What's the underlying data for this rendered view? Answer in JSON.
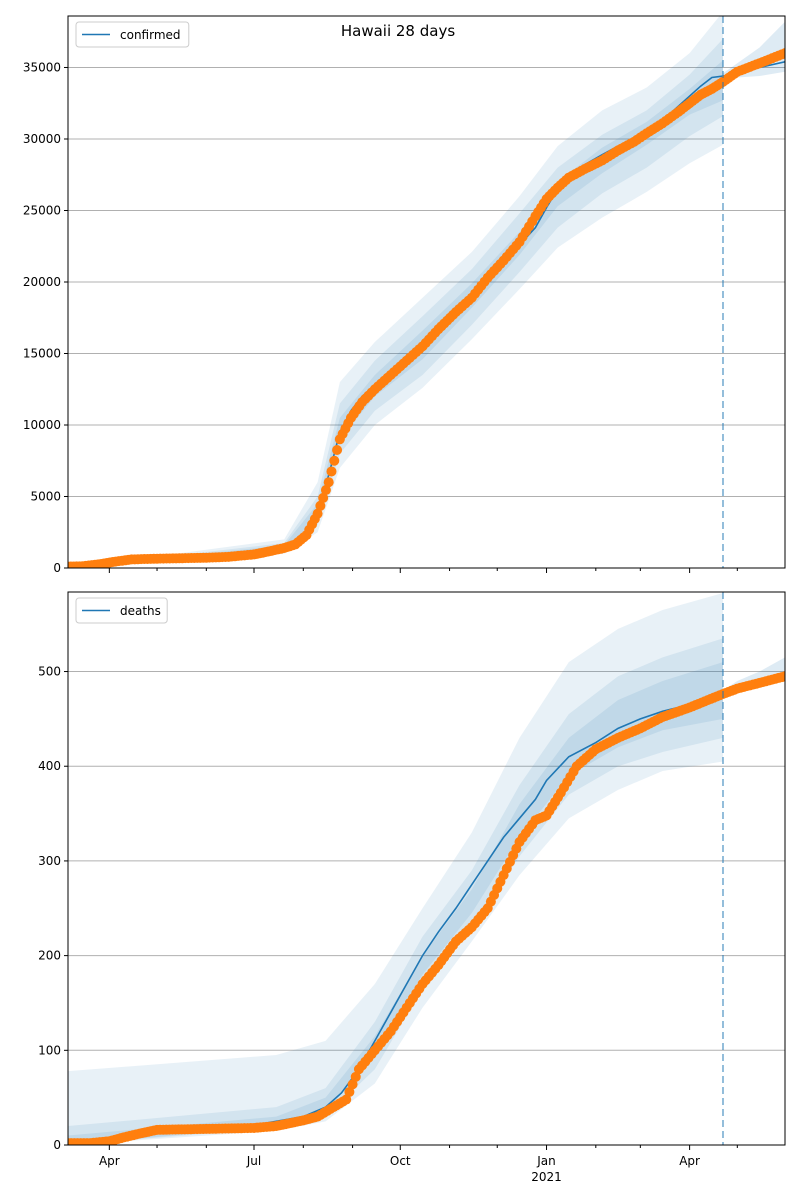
{
  "figure": {
    "title": "Hawaii 28 days"
  },
  "style": {
    "line_color": "#1f77b4",
    "point_color": "#ff7f0e",
    "band_color": "#1f77b4",
    "grid_color": "#b0b0b0",
    "vline_color": "#1f77b4"
  },
  "chart_data": [
    {
      "type": "line",
      "panel": "top",
      "series": [
        {
          "name": "confirmed",
          "kind": "line",
          "x": [
            "2020-03-06",
            "2020-03-15",
            "2020-03-25",
            "2020-04-05",
            "2020-04-15",
            "2020-05-01",
            "2020-05-15",
            "2020-06-01",
            "2020-06-15",
            "2020-07-01",
            "2020-07-10",
            "2020-07-20",
            "2020-07-27",
            "2020-08-03",
            "2020-08-10",
            "2020-08-17",
            "2020-08-24",
            "2020-08-31",
            "2020-09-07",
            "2020-09-15",
            "2020-09-25",
            "2020-10-05",
            "2020-10-15",
            "2020-10-25",
            "2020-11-05",
            "2020-11-15",
            "2020-11-25",
            "2020-12-05",
            "2020-12-15",
            "2020-12-25",
            "2021-01-01",
            "2021-01-08",
            "2021-01-15",
            "2021-01-25",
            "2021-02-05",
            "2021-02-15",
            "2021-02-25",
            "2021-03-05",
            "2021-03-15",
            "2021-03-25",
            "2021-04-01",
            "2021-04-08",
            "2021-04-15",
            "2021-04-22",
            "2021-05-01",
            "2021-05-15",
            "2021-05-31"
          ],
          "y": [
            100,
            150,
            300,
            500,
            600,
            650,
            680,
            720,
            780,
            950,
            1150,
            1400,
            1700,
            2500,
            4000,
            6500,
            9500,
            11000,
            12000,
            12800,
            13700,
            14700,
            15700,
            16800,
            18000,
            19200,
            20300,
            21500,
            22600,
            23800,
            25200,
            26500,
            27400,
            28200,
            28900,
            29500,
            30100,
            30700,
            31300,
            32300,
            33000,
            33700,
            34300,
            34400,
            34600,
            35000,
            35400
          ]
        },
        {
          "name": "",
          "kind": "points",
          "x": [
            "2020-03-06",
            "2020-03-15",
            "2020-03-25",
            "2020-04-05",
            "2020-04-15",
            "2020-05-01",
            "2020-05-15",
            "2020-06-01",
            "2020-06-15",
            "2020-07-01",
            "2020-07-10",
            "2020-07-20",
            "2020-07-27",
            "2020-08-03",
            "2020-08-10",
            "2020-08-17",
            "2020-08-24",
            "2020-08-31",
            "2020-09-07",
            "2020-09-15",
            "2020-09-25",
            "2020-10-05",
            "2020-10-15",
            "2020-10-25",
            "2020-11-05",
            "2020-11-15",
            "2020-11-25",
            "2020-12-05",
            "2020-12-15",
            "2020-12-25",
            "2021-01-01",
            "2021-01-08",
            "2021-01-15",
            "2021-01-25",
            "2021-02-05",
            "2021-02-15",
            "2021-02-25",
            "2021-03-05",
            "2021-03-15",
            "2021-03-25",
            "2021-04-01",
            "2021-04-08",
            "2021-04-15",
            "2021-04-22",
            "2021-05-01",
            "2021-05-15",
            "2021-05-31"
          ],
          "y": [
            100,
            120,
            250,
            450,
            600,
            650,
            680,
            720,
            780,
            950,
            1150,
            1400,
            1650,
            2300,
            3800,
            6000,
            9000,
            10500,
            11600,
            12500,
            13500,
            14500,
            15500,
            16700,
            17900,
            18900,
            20300,
            21500,
            22800,
            24600,
            25800,
            26600,
            27300,
            27900,
            28500,
            29200,
            29800,
            30400,
            31100,
            31900,
            32500,
            33100,
            33500,
            34000,
            34700,
            35300,
            36000
          ]
        }
      ],
      "bands": [
        {
          "lower_x": [
            "2020-03-06",
            "2020-07-20",
            "2020-08-10",
            "2020-08-24",
            "2020-09-15",
            "2020-10-15",
            "2020-11-15",
            "2020-12-15",
            "2021-01-08",
            "2021-02-05",
            "2021-03-05",
            "2021-04-01",
            "2021-04-22"
          ],
          "lower_y": [
            0,
            1000,
            2500,
            7000,
            10000,
            12600,
            16000,
            19500,
            22400,
            24500,
            26300,
            28300,
            29600
          ],
          "upper_x": [
            "2020-03-06",
            "2020-07-20",
            "2020-08-10",
            "2020-08-24",
            "2020-09-15",
            "2020-10-15",
            "2020-11-15",
            "2020-12-15",
            "2021-01-08",
            "2021-02-05",
            "2021-03-05",
            "2021-04-01",
            "2021-04-22"
          ],
          "upper_y": [
            0,
            2000,
            6000,
            13000,
            15800,
            18900,
            22100,
            26000,
            29500,
            32000,
            33600,
            36000,
            38900
          ]
        },
        {
          "lower_x": [
            "2020-03-06",
            "2020-07-20",
            "2020-08-10",
            "2020-08-24",
            "2020-09-15",
            "2020-10-15",
            "2020-11-15",
            "2020-12-15",
            "2021-01-08",
            "2021-02-05",
            "2021-03-05",
            "2021-04-01",
            "2021-04-22"
          ],
          "lower_y": [
            0,
            1150,
            3000,
            8000,
            11000,
            13500,
            17000,
            20700,
            23800,
            26200,
            28000,
            30200,
            31600
          ],
          "upper_x": [
            "2020-03-06",
            "2020-07-20",
            "2020-08-10",
            "2020-08-24",
            "2020-09-15",
            "2020-10-15",
            "2020-11-15",
            "2020-12-15",
            "2021-01-08",
            "2021-02-05",
            "2021-03-05",
            "2021-04-01",
            "2021-04-22"
          ],
          "upper_y": [
            0,
            1750,
            5000,
            11500,
            14500,
            17600,
            20900,
            24800,
            28000,
            30300,
            32000,
            34500,
            37000
          ]
        },
        {
          "lower_x": [
            "2020-03-06",
            "2020-07-20",
            "2020-08-10",
            "2020-08-24",
            "2020-09-15",
            "2020-10-15",
            "2020-11-15",
            "2020-12-15",
            "2021-01-08",
            "2021-02-05",
            "2021-03-05",
            "2021-04-01",
            "2021-04-22"
          ],
          "lower_y": [
            0,
            1300,
            3500,
            9000,
            12000,
            14600,
            18200,
            21900,
            25300,
            27600,
            29600,
            31700,
            32700
          ],
          "upper_x": [
            "2020-03-06",
            "2020-07-20",
            "2020-08-10",
            "2020-08-24",
            "2020-09-15",
            "2020-10-15",
            "2020-11-15",
            "2020-12-15",
            "2021-01-08",
            "2021-02-05",
            "2021-03-05",
            "2021-04-01",
            "2021-04-22"
          ],
          "upper_y": [
            0,
            1600,
            4500,
            10500,
            13500,
            16600,
            19900,
            23500,
            27000,
            29400,
            31200,
            33500,
            35500
          ]
        }
      ],
      "forecast_band": {
        "x": [
          "2021-04-22",
          "2021-05-01",
          "2021-05-15",
          "2021-05-31"
        ],
        "lower": [
          34000,
          34300,
          34400,
          34700
        ],
        "upper": [
          34600,
          35300,
          36400,
          38200
        ]
      },
      "vline_x": "2021-04-22",
      "xlim": [
        "2020-03-06",
        "2021-05-31"
      ],
      "ylim": [
        0,
        38600
      ],
      "yticks": [
        0,
        5000,
        10000,
        15000,
        20000,
        25000,
        30000,
        35000
      ],
      "ytick_labels": [
        "0",
        "5000",
        "10000",
        "15000",
        "20000",
        "25000",
        "30000",
        "35000"
      ],
      "grid": true,
      "legend": {
        "entries": [
          "confirmed"
        ],
        "placement": "top-left"
      }
    },
    {
      "type": "line",
      "panel": "bottom",
      "series": [
        {
          "name": "deaths",
          "kind": "line",
          "x": [
            "2020-03-06",
            "2020-04-01",
            "2020-04-15",
            "2020-05-01",
            "2020-06-01",
            "2020-07-01",
            "2020-07-15",
            "2020-08-01",
            "2020-08-15",
            "2020-08-25",
            "2020-09-05",
            "2020-09-15",
            "2020-09-25",
            "2020-10-05",
            "2020-10-15",
            "2020-10-25",
            "2020-11-05",
            "2020-11-15",
            "2020-11-25",
            "2020-12-05",
            "2020-12-15",
            "2020-12-25",
            "2021-01-01",
            "2021-01-15",
            "2021-02-01",
            "2021-02-15",
            "2021-03-01",
            "2021-03-15",
            "2021-04-01",
            "2021-04-22",
            "2021-05-01",
            "2021-05-15",
            "2021-05-31"
          ],
          "y": [
            2,
            5,
            10,
            15,
            18,
            21,
            25,
            30,
            40,
            55,
            80,
            110,
            140,
            170,
            200,
            225,
            250,
            275,
            300,
            325,
            345,
            365,
            385,
            410,
            425,
            440,
            450,
            458,
            465,
            475,
            482,
            488,
            495
          ]
        },
        {
          "name": "",
          "kind": "points",
          "x": [
            "2020-03-06",
            "2020-03-20",
            "2020-04-01",
            "2020-04-10",
            "2020-04-20",
            "2020-05-01",
            "2020-06-01",
            "2020-07-01",
            "2020-07-15",
            "2020-08-01",
            "2020-08-10",
            "2020-08-20",
            "2020-08-28",
            "2020-09-05",
            "2020-09-15",
            "2020-09-25",
            "2020-10-05",
            "2020-10-15",
            "2020-10-25",
            "2020-11-05",
            "2020-11-15",
            "2020-11-25",
            "2020-12-05",
            "2020-12-15",
            "2020-12-25",
            "2021-01-01",
            "2021-01-10",
            "2021-01-20",
            "2021-02-01",
            "2021-02-15",
            "2021-03-01",
            "2021-03-15",
            "2021-04-01",
            "2021-04-20",
            "2021-05-01",
            "2021-05-15",
            "2021-05-31"
          ],
          "y": [
            2,
            2,
            4,
            8,
            12,
            16,
            17,
            18,
            20,
            26,
            30,
            40,
            48,
            80,
            100,
            120,
            145,
            170,
            190,
            215,
            230,
            250,
            285,
            320,
            343,
            348,
            372,
            400,
            418,
            430,
            440,
            452,
            462,
            475,
            482,
            488,
            495
          ]
        }
      ],
      "bands": [
        {
          "lower_x": [
            "2020-03-06",
            "2020-07-15",
            "2020-08-15",
            "2020-09-15",
            "2020-10-15",
            "2020-11-15",
            "2020-12-15",
            "2021-01-15",
            "2021-02-15",
            "2021-03-15",
            "2021-04-22"
          ],
          "lower_y": [
            0,
            15,
            25,
            65,
            145,
            215,
            285,
            345,
            375,
            395,
            405
          ],
          "upper_x": [
            "2020-03-06",
            "2020-07-15",
            "2020-08-15",
            "2020-09-15",
            "2020-10-15",
            "2020-11-15",
            "2020-12-15",
            "2021-01-15",
            "2021-02-15",
            "2021-03-15",
            "2021-04-22"
          ],
          "upper_y": [
            78,
            95,
            110,
            170,
            250,
            330,
            430,
            510,
            545,
            565,
            583
          ]
        },
        {
          "lower_x": [
            "2020-03-06",
            "2020-07-15",
            "2020-08-15",
            "2020-09-15",
            "2020-10-15",
            "2020-11-15",
            "2020-12-15",
            "2021-01-15",
            "2021-02-15",
            "2021-03-15",
            "2021-04-22"
          ],
          "lower_y": [
            0,
            18,
            30,
            80,
            165,
            230,
            305,
            370,
            400,
            415,
            430
          ],
          "upper_x": [
            "2020-03-06",
            "2020-07-15",
            "2020-08-15",
            "2020-09-15",
            "2020-10-15",
            "2020-11-15",
            "2020-12-15",
            "2021-01-15",
            "2021-02-15",
            "2021-03-15",
            "2021-04-22"
          ],
          "upper_y": [
            20,
            40,
            60,
            130,
            220,
            290,
            380,
            455,
            495,
            515,
            535
          ]
        },
        {
          "lower_x": [
            "2020-03-06",
            "2020-07-15",
            "2020-08-15",
            "2020-09-15",
            "2020-10-15",
            "2020-11-15",
            "2020-12-15",
            "2021-01-15",
            "2021-02-15",
            "2021-03-15",
            "2021-04-22"
          ],
          "lower_y": [
            0,
            20,
            35,
            95,
            180,
            245,
            325,
            390,
            420,
            438,
            450
          ],
          "upper_x": [
            "2020-03-06",
            "2020-07-15",
            "2020-08-15",
            "2020-09-15",
            "2020-10-15",
            "2020-11-15",
            "2020-12-15",
            "2021-01-15",
            "2021-02-15",
            "2021-03-15",
            "2021-04-22"
          ],
          "upper_y": [
            10,
            30,
            50,
            115,
            200,
            270,
            360,
            430,
            470,
            490,
            510
          ]
        }
      ],
      "forecast_band": {
        "x": [
          "2021-04-22",
          "2021-05-01",
          "2021-05-15",
          "2021-05-31"
        ],
        "lower": [
          476,
          480,
          486,
          490
        ],
        "upper": [
          480,
          490,
          500,
          515
        ]
      },
      "vline_x": "2021-04-22",
      "xlim": [
        "2020-03-06",
        "2021-05-31"
      ],
      "ylim": [
        0,
        584
      ],
      "yticks": [
        0,
        100,
        200,
        300,
        400,
        500
      ],
      "ytick_labels": [
        "0",
        "100",
        "200",
        "300",
        "400",
        "500"
      ],
      "grid": true,
      "legend": {
        "entries": [
          "deaths"
        ],
        "placement": "top-left"
      }
    }
  ],
  "x_axis": {
    "major_ticks": [
      "2020-04-01",
      "2020-07-01",
      "2020-10-01",
      "2021-01-01",
      "2021-04-01"
    ],
    "major_labels": [
      "Apr",
      "Jul",
      "Oct",
      "Jan",
      "Apr"
    ],
    "year_label_at": "2021-01-01",
    "year_label": "2021",
    "minor_ticks": [
      "2020-05-01",
      "2020-06-01",
      "2020-08-01",
      "2020-09-01",
      "2020-11-01",
      "2020-12-01",
      "2021-02-01",
      "2021-03-01",
      "2021-05-01"
    ]
  }
}
